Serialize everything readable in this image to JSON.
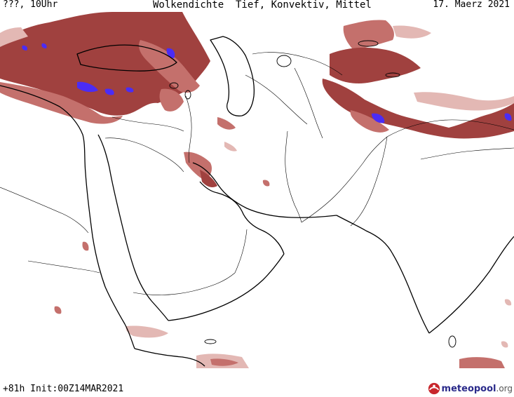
{
  "header": {
    "left": "???, 10Uhr",
    "center": "Wolkendichte  Tief, Konvektiv, Mittel",
    "right": "17. Maerz 2021"
  },
  "footer": {
    "left": "+81h Init:00Z14MAR2021"
  },
  "logo": {
    "brand": "meteopool",
    "tld": ".org"
  },
  "colors": {
    "cloud_dense": "#a0413f",
    "cloud_medium": "#c4706c",
    "cloud_light": "#e3b8b4",
    "cloud_max": "#4b2cf5",
    "border": "#000000"
  }
}
